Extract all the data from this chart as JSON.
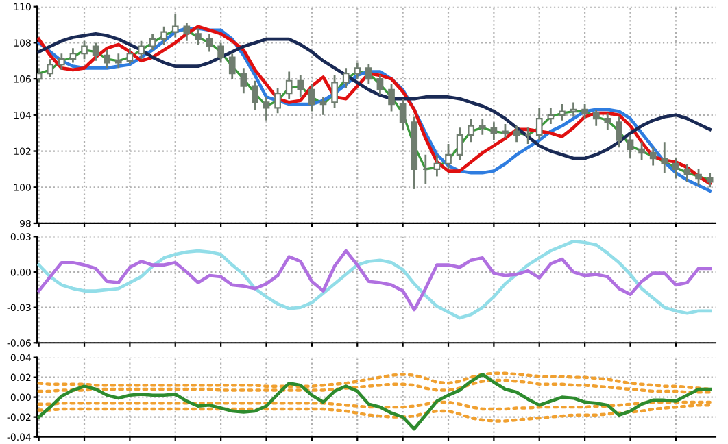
{
  "chart_data": [
    {
      "type": "candlestick",
      "categories": [
        null,
        null,
        null,
        null,
        null,
        null,
        null,
        null,
        null,
        null,
        null,
        null,
        null,
        null,
        null,
        null,
        null,
        null,
        null,
        null,
        null,
        null,
        null,
        null,
        null,
        null,
        null,
        null,
        null,
        null,
        null,
        null,
        null,
        null,
        null,
        null,
        null,
        null,
        null,
        null,
        null,
        null,
        null,
        null,
        null,
        null,
        null,
        null,
        null,
        null,
        null,
        null,
        null,
        null,
        null,
        null,
        null,
        null,
        null,
        null
      ],
      "ylim": [
        98,
        110
      ],
      "yticks": [
        98,
        100,
        102,
        104,
        106,
        108,
        110
      ],
      "grid": true,
      "tick_labels": "y",
      "line_style": "solid",
      "marker": "none",
      "series": [
        {
          "type": "candlestick",
          "color": "#6f7d6f",
          "ohlc": [
            [
              106.0,
              106.6,
              105.8,
              106.3
            ],
            [
              106.3,
              107.1,
              106.1,
              106.8
            ],
            [
              106.8,
              107.4,
              106.5,
              107.1
            ],
            [
              107.1,
              107.7,
              106.9,
              107.4
            ],
            [
              107.4,
              108.1,
              107.1,
              107.8
            ],
            [
              107.8,
              108.0,
              107.0,
              107.3
            ],
            [
              107.3,
              107.6,
              106.6,
              106.9
            ],
            [
              106.9,
              107.4,
              106.6,
              107.0
            ],
            [
              107.0,
              107.7,
              106.8,
              107.4
            ],
            [
              107.4,
              108.1,
              107.1,
              107.8
            ],
            [
              107.8,
              108.5,
              107.6,
              108.2
            ],
            [
              108.2,
              108.9,
              107.9,
              108.6
            ],
            [
              108.6,
              109.6,
              108.3,
              108.9
            ],
            [
              108.9,
              109.1,
              108.1,
              108.5
            ],
            [
              108.5,
              108.8,
              107.9,
              108.2
            ],
            [
              108.2,
              108.5,
              107.5,
              107.8
            ],
            [
              107.8,
              108.0,
              106.9,
              107.2
            ],
            [
              107.2,
              107.4,
              106.0,
              106.3
            ],
            [
              106.3,
              106.6,
              105.2,
              105.6
            ],
            [
              105.6,
              105.9,
              104.3,
              104.7
            ],
            [
              104.7,
              105.0,
              103.7,
              104.4
            ],
            [
              104.4,
              105.5,
              104.1,
              105.2
            ],
            [
              105.2,
              106.4,
              104.9,
              105.9
            ],
            [
              105.9,
              106.2,
              105.0,
              105.4
            ],
            [
              105.4,
              105.7,
              104.2,
              104.6
            ],
            [
              104.6,
              105.0,
              104.0,
              104.7
            ],
            [
              104.7,
              106.2,
              104.4,
              105.8
            ],
            [
              105.8,
              106.6,
              105.5,
              106.3
            ],
            [
              106.3,
              106.9,
              106.0,
              106.6
            ],
            [
              106.6,
              106.8,
              105.7,
              106.0
            ],
            [
              106.0,
              106.2,
              105.1,
              105.4
            ],
            [
              105.4,
              105.7,
              104.2,
              104.6
            ],
            [
              104.6,
              104.9,
              103.2,
              103.6
            ],
            [
              103.6,
              103.9,
              99.9,
              101.0
            ],
            [
              101.0,
              101.8,
              100.2,
              101.0
            ],
            [
              101.0,
              101.8,
              100.6,
              101.3
            ],
            [
              101.3,
              102.4,
              101.0,
              101.8
            ],
            [
              101.8,
              103.3,
              101.5,
              102.9
            ],
            [
              102.9,
              103.8,
              102.5,
              103.4
            ],
            [
              103.4,
              103.8,
              102.9,
              103.3
            ],
            [
              103.3,
              103.6,
              102.6,
              103.0
            ],
            [
              103.0,
              103.5,
              102.7,
              103.1
            ],
            [
              103.1,
              103.4,
              102.5,
              102.9
            ],
            [
              102.9,
              103.3,
              102.4,
              102.9
            ],
            [
              102.9,
              104.4,
              102.6,
              103.8
            ],
            [
              103.8,
              104.4,
              103.5,
              104.0
            ],
            [
              104.0,
              104.6,
              103.7,
              104.2
            ],
            [
              104.2,
              104.7,
              103.9,
              104.3
            ],
            [
              104.3,
              104.6,
              103.8,
              104.1
            ],
            [
              104.1,
              104.3,
              103.4,
              103.8
            ],
            [
              103.8,
              104.1,
              103.2,
              103.6
            ],
            [
              103.6,
              103.9,
              102.2,
              102.6
            ],
            [
              102.6,
              102.9,
              101.6,
              102.1
            ],
            [
              102.1,
              102.5,
              101.5,
              101.9
            ],
            [
              101.9,
              102.2,
              101.2,
              101.6
            ],
            [
              101.6,
              102.5,
              100.8,
              101.3
            ],
            [
              101.3,
              101.6,
              100.5,
              101.0
            ],
            [
              101.0,
              101.3,
              100.3,
              100.7
            ],
            [
              100.7,
              101.0,
              100.1,
              100.5
            ],
            [
              100.5,
              100.8,
              100.0,
              100.3
            ]
          ]
        },
        {
          "type": "line",
          "color": "#3c9a3c",
          "values": [
            106.3,
            106.5,
            107.0,
            107.2,
            107.6,
            107.5,
            107.1,
            107.0,
            107.2,
            107.6,
            108.0,
            108.4,
            108.7,
            108.7,
            108.3,
            108.0,
            107.5,
            106.7,
            106.0,
            105.2,
            104.5,
            104.8,
            105.5,
            105.6,
            105.0,
            104.6,
            105.2,
            106.0,
            106.4,
            106.3,
            105.7,
            105.0,
            104.1,
            102.3,
            101.0,
            101.1,
            101.5,
            102.3,
            103.1,
            103.3,
            103.1,
            103.0,
            103.0,
            102.9,
            103.3,
            103.9,
            104.1,
            104.2,
            104.2,
            103.9,
            103.7,
            103.1,
            102.3,
            102.0,
            101.7,
            101.4,
            101.1,
            100.8,
            100.6,
            100.4
          ]
        },
        {
          "type": "line",
          "color": "#2f7de0",
          "values": [
            108.0,
            107.5,
            107.0,
            106.7,
            106.6,
            106.6,
            106.6,
            106.7,
            106.8,
            107.2,
            107.6,
            108.1,
            108.6,
            108.8,
            108.8,
            108.7,
            108.7,
            108.2,
            107.3,
            106.2,
            105.0,
            104.8,
            104.6,
            104.6,
            104.6,
            104.8,
            105.2,
            105.7,
            106.2,
            106.4,
            106.4,
            106.0,
            105.4,
            104.3,
            103.0,
            101.8,
            101.2,
            100.9,
            100.8,
            100.8,
            100.9,
            101.3,
            101.8,
            102.2,
            102.6,
            103.1,
            103.4,
            103.8,
            104.2,
            104.3,
            104.3,
            104.2,
            103.8,
            103.0,
            102.2,
            101.4,
            100.8,
            100.4,
            100.1,
            99.8
          ]
        },
        {
          "type": "line",
          "color": "#e01010",
          "values": [
            108.2,
            107.3,
            106.6,
            106.5,
            106.6,
            107.2,
            107.7,
            107.9,
            107.5,
            107.0,
            107.2,
            107.6,
            108.0,
            108.5,
            108.9,
            108.7,
            108.5,
            108.1,
            107.6,
            106.5,
            105.7,
            104.9,
            104.7,
            104.8,
            105.6,
            106.1,
            105.0,
            104.9,
            105.6,
            106.3,
            106.2,
            106.0,
            105.3,
            104.3,
            102.7,
            101.4,
            100.9,
            100.9,
            101.4,
            101.9,
            102.3,
            102.7,
            103.2,
            103.2,
            103.1,
            103.0,
            102.8,
            103.3,
            103.9,
            104.1,
            104.1,
            104.0,
            103.4,
            102.5,
            101.7,
            101.5,
            101.4,
            101.1,
            100.6,
            100.2
          ]
        },
        {
          "type": "line",
          "color": "#1a2a55",
          "values": [
            107.5,
            107.8,
            108.1,
            108.3,
            108.4,
            108.5,
            108.4,
            108.2,
            107.9,
            107.6,
            107.2,
            106.9,
            106.7,
            106.7,
            106.7,
            106.9,
            107.2,
            107.5,
            107.8,
            108.0,
            108.2,
            108.2,
            108.2,
            107.9,
            107.5,
            107.0,
            106.6,
            106.2,
            105.8,
            105.4,
            105.1,
            104.9,
            104.9,
            104.9,
            105.0,
            105.0,
            105.0,
            104.9,
            104.7,
            104.5,
            104.2,
            103.8,
            103.3,
            102.8,
            102.3,
            102.0,
            101.8,
            101.6,
            101.6,
            101.8,
            102.1,
            102.5,
            103.0,
            103.4,
            103.7,
            103.9,
            104.0,
            103.8,
            103.5,
            103.2
          ]
        }
      ]
    },
    {
      "type": "line",
      "categories": [
        null,
        null,
        null,
        null,
        null,
        null,
        null,
        null,
        null,
        null,
        null,
        null,
        null,
        null,
        null,
        null,
        null,
        null,
        null,
        null,
        null,
        null,
        null,
        null,
        null,
        null,
        null,
        null,
        null,
        null,
        null,
        null,
        null,
        null,
        null,
        null,
        null,
        null,
        null,
        null,
        null,
        null,
        null,
        null,
        null,
        null,
        null,
        null,
        null,
        null,
        null,
        null,
        null,
        null,
        null,
        null,
        null,
        null,
        null,
        null
      ],
      "ylim": [
        -0.06,
        0.03
      ],
      "yticks": [
        {
          "value": -0.06,
          "label": "-0.06"
        },
        {
          "value": -0.03,
          "label": "-0.03"
        },
        {
          "value": 0,
          "label": "0.00"
        },
        {
          "value": 0.03,
          "label": "0.03"
        }
      ],
      "grid": true,
      "tick_labels": "y",
      "line_style": "solid",
      "marker": "none",
      "series": [
        {
          "color": "#92dde8",
          "values": [
            0.006,
            -0.004,
            -0.011,
            -0.014,
            -0.016,
            -0.016,
            -0.015,
            -0.014,
            -0.009,
            -0.004,
            0.005,
            0.012,
            0.015,
            0.017,
            0.018,
            0.017,
            0.015,
            0.006,
            -0.002,
            -0.014,
            -0.021,
            -0.027,
            -0.031,
            -0.03,
            -0.026,
            -0.018,
            -0.01,
            -0.002,
            0.006,
            0.009,
            0.01,
            0.008,
            0.002,
            -0.01,
            -0.02,
            -0.029,
            -0.034,
            -0.039,
            -0.036,
            -0.03,
            -0.021,
            -0.01,
            -0.002,
            0.006,
            0.012,
            0.018,
            0.022,
            0.026,
            0.025,
            0.023,
            0.016,
            0.008,
            -0.002,
            -0.014,
            -0.022,
            -0.03,
            -0.033,
            -0.035,
            -0.033,
            -0.033
          ]
        },
        {
          "color": "#b070e0",
          "values": [
            -0.016,
            -0.004,
            0.008,
            0.008,
            0.006,
            0.003,
            -0.008,
            -0.009,
            0.004,
            0.009,
            0.006,
            0.006,
            0.008,
            0.0,
            -0.009,
            -0.003,
            -0.004,
            -0.011,
            -0.012,
            -0.014,
            -0.01,
            -0.003,
            0.013,
            0.009,
            -0.008,
            -0.016,
            0.005,
            0.018,
            0.006,
            -0.008,
            -0.009,
            -0.011,
            -0.016,
            -0.032,
            -0.014,
            0.006,
            0.006,
            0.004,
            0.01,
            0.012,
            -0.001,
            -0.003,
            -0.002,
            0.001,
            -0.005,
            0.007,
            0.011,
            0.0,
            -0.003,
            -0.002,
            -0.004,
            -0.014,
            -0.019,
            -0.008,
            -0.001,
            -0.001,
            -0.011,
            -0.009,
            0.003,
            0.003
          ]
        }
      ]
    },
    {
      "type": "line",
      "categories": [
        null,
        null,
        null,
        null,
        null,
        null,
        null,
        null,
        null,
        null,
        null,
        null,
        null,
        null,
        null,
        null,
        null,
        null,
        null,
        null,
        null,
        null,
        null,
        null,
        null,
        null,
        null,
        null,
        null,
        null,
        null,
        null,
        null,
        null,
        null,
        null,
        null,
        null,
        null,
        null,
        null,
        null,
        null,
        null,
        null,
        null,
        null,
        null,
        null,
        null,
        null,
        null,
        null,
        null,
        null,
        null,
        null,
        null,
        null,
        null
      ],
      "ylim": [
        -0.04,
        0.04
      ],
      "yticks": [
        {
          "value": -0.04,
          "label": "-0.04"
        },
        {
          "value": -0.02,
          "label": "-0.02"
        },
        {
          "value": 0,
          "label": "0.00"
        },
        {
          "value": 0.02,
          "label": "0.02"
        },
        {
          "value": 0.04,
          "label": "0.04"
        }
      ],
      "grid": true,
      "tick_labels": "y",
      "line_style": "solid",
      "marker": "none",
      "series": [
        {
          "color": "#f0a030",
          "line_style": "dotted",
          "values": [
            0.014,
            0.013,
            0.013,
            0.013,
            0.013,
            0.012,
            0.012,
            0.012,
            0.012,
            0.012,
            0.012,
            0.012,
            0.012,
            0.012,
            0.012,
            0.012,
            0.012,
            0.012,
            0.012,
            0.012,
            0.011,
            0.011,
            0.011,
            0.011,
            0.011,
            0.012,
            0.013,
            0.014,
            0.016,
            0.018,
            0.02,
            0.022,
            0.023,
            0.022,
            0.019,
            0.015,
            0.014,
            0.016,
            0.02,
            0.023,
            0.024,
            0.024,
            0.023,
            0.022,
            0.021,
            0.021,
            0.021,
            0.02,
            0.02,
            0.019,
            0.018,
            0.016,
            0.014,
            0.013,
            0.012,
            0.011,
            0.011,
            0.01,
            0.009,
            0.008
          ]
        },
        {
          "color": "#f0a030",
          "line_style": "dotted",
          "values": [
            0.006,
            0.006,
            0.007,
            0.007,
            0.007,
            0.008,
            0.008,
            0.008,
            0.008,
            0.008,
            0.008,
            0.008,
            0.008,
            0.008,
            0.008,
            0.008,
            0.007,
            0.007,
            0.007,
            0.007,
            0.007,
            0.007,
            0.007,
            0.007,
            0.007,
            0.007,
            0.008,
            0.009,
            0.01,
            0.011,
            0.012,
            0.013,
            0.013,
            0.012,
            0.009,
            0.007,
            0.007,
            0.009,
            0.013,
            0.016,
            0.017,
            0.017,
            0.016,
            0.015,
            0.013,
            0.013,
            0.013,
            0.012,
            0.012,
            0.011,
            0.01,
            0.009,
            0.008,
            0.007,
            0.006,
            0.006,
            0.006,
            0.005,
            0.005,
            0.005
          ]
        },
        {
          "color": "#f0a030",
          "line_style": "dotted",
          "values": [
            -0.007,
            -0.007,
            -0.006,
            -0.006,
            -0.006,
            -0.006,
            -0.006,
            -0.006,
            -0.006,
            -0.006,
            -0.006,
            -0.006,
            -0.006,
            -0.006,
            -0.006,
            -0.006,
            -0.006,
            -0.006,
            -0.006,
            -0.006,
            -0.006,
            -0.006,
            -0.006,
            -0.006,
            -0.006,
            -0.006,
            -0.007,
            -0.008,
            -0.009,
            -0.01,
            -0.01,
            -0.01,
            -0.01,
            -0.009,
            -0.007,
            -0.005,
            -0.005,
            -0.007,
            -0.01,
            -0.012,
            -0.012,
            -0.012,
            -0.011,
            -0.011,
            -0.01,
            -0.01,
            -0.01,
            -0.01,
            -0.01,
            -0.009,
            -0.009,
            -0.008,
            -0.007,
            -0.006,
            -0.005,
            -0.005,
            -0.005,
            -0.005,
            -0.005,
            -0.005
          ]
        },
        {
          "color": "#f0a030",
          "line_style": "dotted",
          "values": [
            -0.013,
            -0.013,
            -0.012,
            -0.012,
            -0.012,
            -0.012,
            -0.012,
            -0.012,
            -0.012,
            -0.012,
            -0.012,
            -0.012,
            -0.012,
            -0.012,
            -0.012,
            -0.012,
            -0.012,
            -0.012,
            -0.012,
            -0.012,
            -0.012,
            -0.012,
            -0.012,
            -0.012,
            -0.012,
            -0.012,
            -0.013,
            -0.014,
            -0.016,
            -0.018,
            -0.019,
            -0.02,
            -0.02,
            -0.019,
            -0.016,
            -0.014,
            -0.014,
            -0.017,
            -0.021,
            -0.023,
            -0.024,
            -0.024,
            -0.023,
            -0.022,
            -0.021,
            -0.02,
            -0.019,
            -0.018,
            -0.018,
            -0.018,
            -0.017,
            -0.016,
            -0.015,
            -0.014,
            -0.012,
            -0.011,
            -0.01,
            -0.009,
            -0.008,
            -0.008
          ]
        },
        {
          "color": "#2e8b2e",
          "values": [
            -0.02,
            -0.01,
            0.001,
            0.007,
            0.011,
            0.008,
            0.002,
            -0.001,
            0.002,
            0.003,
            0.002,
            0.002,
            0.003,
            -0.004,
            -0.009,
            -0.008,
            -0.011,
            -0.014,
            -0.015,
            -0.014,
            -0.009,
            0.003,
            0.014,
            0.012,
            0.002,
            -0.005,
            0.006,
            0.011,
            0.006,
            -0.007,
            -0.01,
            -0.016,
            -0.02,
            -0.032,
            -0.018,
            -0.004,
            0.002,
            0.007,
            0.016,
            0.023,
            0.015,
            0.008,
            0.005,
            -0.002,
            -0.008,
            -0.004,
            0.0,
            -0.001,
            -0.005,
            -0.006,
            -0.008,
            -0.018,
            -0.014,
            -0.007,
            -0.003,
            -0.003,
            -0.004,
            0.002,
            0.008,
            0.008
          ]
        }
      ]
    }
  ]
}
